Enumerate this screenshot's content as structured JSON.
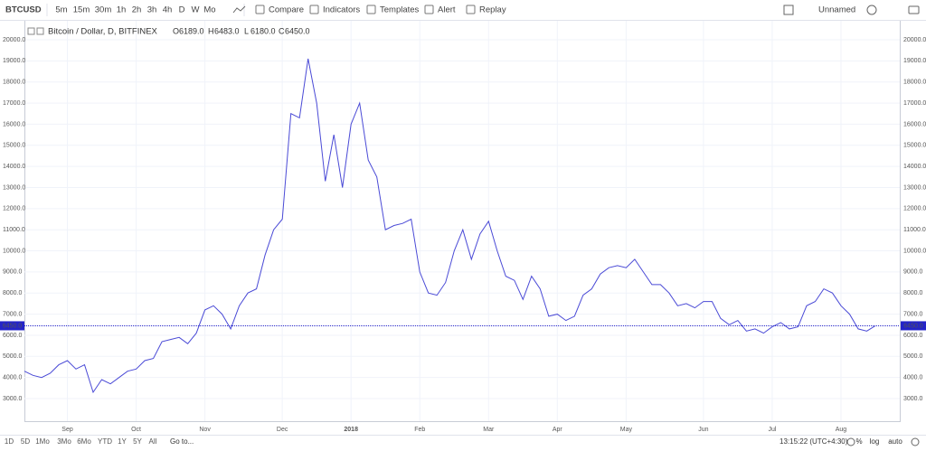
{
  "toolbar": {
    "symbol": "BTCUSD",
    "intervals": [
      "5m",
      "15m",
      "30m",
      "1h",
      "2h",
      "3h",
      "4h",
      "D",
      "W",
      "Mo"
    ],
    "active_interval": "D",
    "buttons": [
      "Compare",
      "Indicators",
      "Templates",
      "Alert",
      "Replay"
    ],
    "layout_name": "Unnamed"
  },
  "chart_data": {
    "type": "line",
    "title": "Bitcoin / Dollar, D, BITFINEX",
    "ohlc": [
      {
        "key": "O",
        "value": 6189,
        "label": "6189.0"
      },
      {
        "key": "H",
        "value": 6483,
        "label": "6483.0"
      },
      {
        "key": "L",
        "value": 6180,
        "label": "6180.0"
      },
      {
        "key": "C",
        "value": 6450,
        "label": "6450.0"
      }
    ],
    "last_price": {
      "value": 6450,
      "label": "6450.0"
    },
    "color": "#4a4ad6",
    "categories": [
      null,
      null,
      null,
      null,
      null,
      "Sep",
      null,
      null,
      null,
      null,
      null,
      null,
      null,
      "Oct",
      null,
      null,
      null,
      null,
      null,
      null,
      null,
      "Nov",
      null,
      null,
      null,
      null,
      null,
      null,
      null,
      null,
      "Dec",
      null,
      null,
      null,
      null,
      null,
      null,
      null,
      "2018",
      null,
      null,
      null,
      null,
      null,
      null,
      null,
      "Feb",
      null,
      null,
      null,
      null,
      null,
      null,
      null,
      "Mar",
      null,
      null,
      null,
      null,
      null,
      null,
      null,
      "Apr",
      null,
      null,
      null,
      null,
      null,
      null,
      null,
      "May",
      null,
      null,
      null,
      null,
      null,
      null,
      null,
      null,
      "Jun",
      null,
      null,
      null,
      null,
      null,
      null,
      null,
      "Jul",
      null,
      null,
      null,
      null,
      null,
      null,
      null,
      "Aug",
      null,
      null,
      null,
      null
    ],
    "values": [
      4300,
      4100,
      4000,
      4200,
      4600,
      4800,
      4400,
      4600,
      3300,
      3900,
      3700,
      4000,
      4300,
      4400,
      4800,
      4900,
      5700,
      5800,
      5900,
      5600,
      6100,
      7200,
      7400,
      7000,
      6300,
      7400,
      8000,
      8200,
      9800,
      11000,
      11500,
      16500,
      16300,
      19100,
      17000,
      13300,
      15500,
      13000,
      16000,
      17000,
      14300,
      13500,
      11000,
      11200,
      11300,
      11500,
      9000,
      8000,
      7900,
      8500,
      10000,
      11000,
      9600,
      10800,
      11400,
      10000,
      8800,
      8600,
      7700,
      8800,
      8200,
      6900,
      7000,
      6700,
      6900,
      7900,
      8200,
      8900,
      9200,
      9300,
      9200,
      9600,
      9000,
      8400,
      8400,
      8000,
      7400,
      7500,
      7300,
      7600,
      7600,
      6800,
      6500,
      6700,
      6200,
      6300,
      6100,
      6400,
      6600,
      6300,
      6400,
      7400,
      7600,
      8200,
      8000,
      7400,
      7000,
      6300,
      6200,
      6450
    ],
    "ylim": [
      1930,
      20600
    ],
    "yticks": [
      {
        "value": 3000,
        "label": "3000.0"
      },
      {
        "value": 4000,
        "label": "4000.0"
      },
      {
        "value": 5000,
        "label": "5000.0"
      },
      {
        "value": 6000,
        "label": "6000.0"
      },
      {
        "value": 7000,
        "label": "7000.0"
      },
      {
        "value": 8000,
        "label": "8000.0"
      },
      {
        "value": 9000,
        "label": "9000.0"
      },
      {
        "value": 10000,
        "label": "10000.0"
      },
      {
        "value": 11000,
        "label": "11000.0"
      },
      {
        "value": 12000,
        "label": "12000.0"
      },
      {
        "value": 13000,
        "label": "13000.0"
      },
      {
        "value": 14000,
        "label": "14000.0"
      },
      {
        "value": 15000,
        "label": "15000.0"
      },
      {
        "value": 16000,
        "label": "16000.0"
      },
      {
        "value": 17000,
        "label": "17000.0"
      },
      {
        "value": 18000,
        "label": "18000.0"
      },
      {
        "value": 19000,
        "label": "19000.0"
      },
      {
        "value": 20000,
        "label": "20000.0"
      }
    ],
    "grid": true
  },
  "bottom_bar": {
    "ranges": [
      "1D",
      "5D",
      "1Mo",
      "3Mo",
      "6Mo",
      "YTD",
      "1Y",
      "5Y",
      "All"
    ],
    "active_range": "1Y",
    "goto": "Go to...",
    "clock": "13:15:22 (UTC+4:30)",
    "options": [
      "%",
      "log",
      "auto"
    ],
    "active_option": "auto"
  }
}
